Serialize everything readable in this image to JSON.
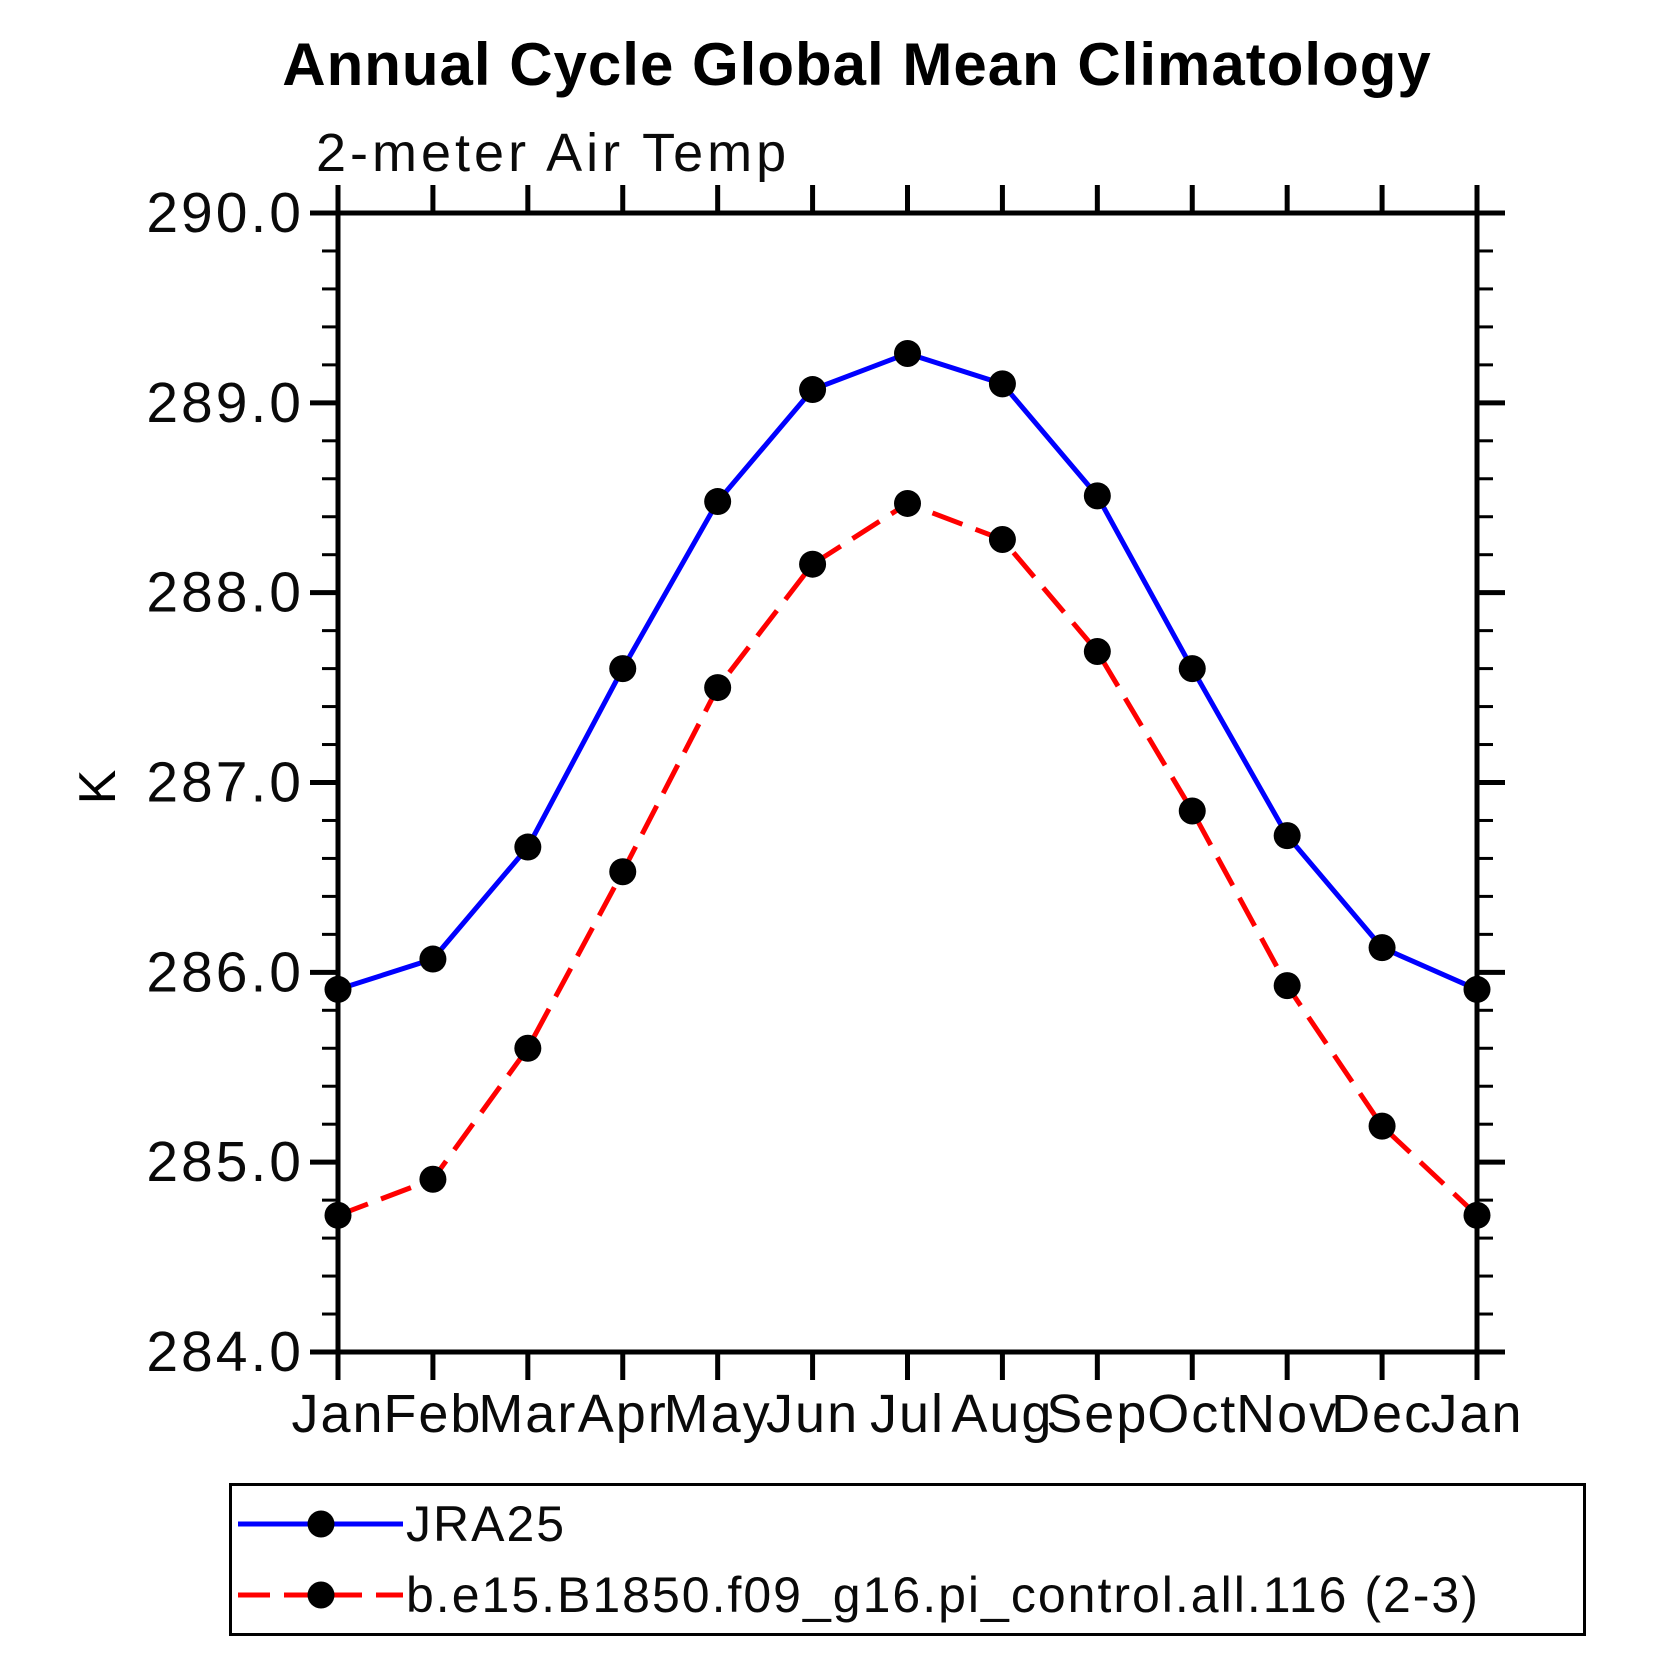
{
  "chart_data": {
    "type": "line",
    "title": "Annual Cycle Global Mean Climatology",
    "subtitle": "2-meter Air Temp",
    "ylabel": "K",
    "xlabel": "",
    "x_categories": [
      "Jan",
      "Feb",
      "Mar",
      "Apr",
      "May",
      "Jun",
      "Jul",
      "Aug",
      "Sep",
      "Oct",
      "Nov",
      "Dec",
      "Jan"
    ],
    "ylim": [
      284.0,
      290.0
    ],
    "ytick_interval": 1.0,
    "yminor_interval": 0.2,
    "ytick_labels": [
      "290.0",
      "289.0",
      "288.0",
      "287.0",
      "286.0",
      "285.0",
      "284.0"
    ],
    "grid": false,
    "legend_position": "bottom-box",
    "axis_color": "#000000",
    "marker_color": "#000000",
    "series": [
      {
        "name": "JRA25",
        "color": "#0000ff",
        "line_style": "solid",
        "marker": "circle",
        "values": [
          285.91,
          286.07,
          286.66,
          287.6,
          288.48,
          289.07,
          289.26,
          289.1,
          288.51,
          287.6,
          286.72,
          286.13,
          285.91
        ]
      },
      {
        "name": "b.e15.B1850.f09_g16.pi_control.all.116 (2-3)",
        "color": "#ff0000",
        "line_style": "dashed",
        "marker": "circle",
        "values": [
          284.72,
          284.91,
          285.6,
          286.53,
          287.5,
          288.15,
          288.47,
          288.28,
          287.69,
          286.85,
          285.93,
          285.19,
          284.72
        ]
      }
    ]
  }
}
